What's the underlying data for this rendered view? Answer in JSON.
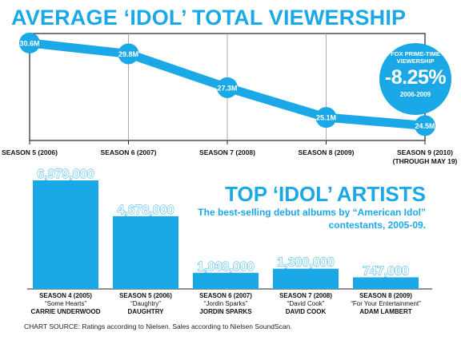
{
  "line_chart": {
    "title": "AVERAGE ‘IDOL’ TOTAL VIEWERSHIP",
    "badge": {
      "source": "FOX PRIME-TIME VIEWERSHIP",
      "value": "-8.25%",
      "period": "2006-2009"
    },
    "colors": {
      "accent": "#1ba8e6",
      "frame": "#222222",
      "grid": "#999999"
    }
  },
  "bar_chart": {
    "title": "TOP ‘IDOL’ ARTISTS",
    "subtitle": "The best-selling debut albums by “American Idol” contestants, 2005-09.",
    "colors": {
      "bar": "#1ba8e6",
      "label_fill": "#ffffff",
      "label_stroke": "#1ba8e6"
    }
  },
  "source": "CHART SOURCE: Ratings according to Nielsen. Sales according to Nielsen SoundScan.",
  "chart_data": [
    {
      "type": "line",
      "title": "AVERAGE ‘IDOL’ TOTAL VIEWERSHIP",
      "categories": [
        "SEASON 5 (2006)",
        "SEASON 6 (2007)",
        "SEASON 7 (2008)",
        "SEASON 8 (2009)",
        "SEASON 9 (2010)"
      ],
      "category_notes": [
        "",
        "",
        "",
        "",
        "(THROUGH MAY 19)"
      ],
      "values": [
        30.6,
        29.8,
        27.3,
        25.1,
        24.5
      ],
      "value_labels": [
        "30.6M",
        "29.8M",
        "27.3M",
        "25.1M",
        "24.5M"
      ],
      "ylim": [
        23.4,
        31.3
      ],
      "grid": "vertical"
    },
    {
      "type": "bar",
      "title": "TOP ‘IDOL’ ARTISTS",
      "subtitle": "The best-selling debut albums by “American Idol” contestants, 2005-09.",
      "categories": [
        {
          "season": "SEASON 4 (2005)",
          "album": "“Some Hearts”",
          "artist": "CARRIE UNDERWOOD"
        },
        {
          "season": "SEASON 5 (2006)",
          "album": "“Daughtry”",
          "artist": "DAUGHTRY"
        },
        {
          "season": "SEASON 6 (2007)",
          "album": "“Jordin Sparks”",
          "artist": "JORDIN SPARKS"
        },
        {
          "season": "SEASON 7 (2008)",
          "album": "“David Cook”",
          "artist": "DAVID COOK"
        },
        {
          "season": "SEASON 8 (2009)",
          "album": "“For Your Entertainment”",
          "artist": "ADAM LAMBERT"
        }
      ],
      "values": [
        6979000,
        4678000,
        1038000,
        1300000,
        747000
      ],
      "value_labels": [
        "6,979,000",
        "4,678,000",
        "1,038,000",
        "1,300,000",
        "747,000"
      ],
      "ylim": [
        0,
        6979000
      ]
    }
  ]
}
